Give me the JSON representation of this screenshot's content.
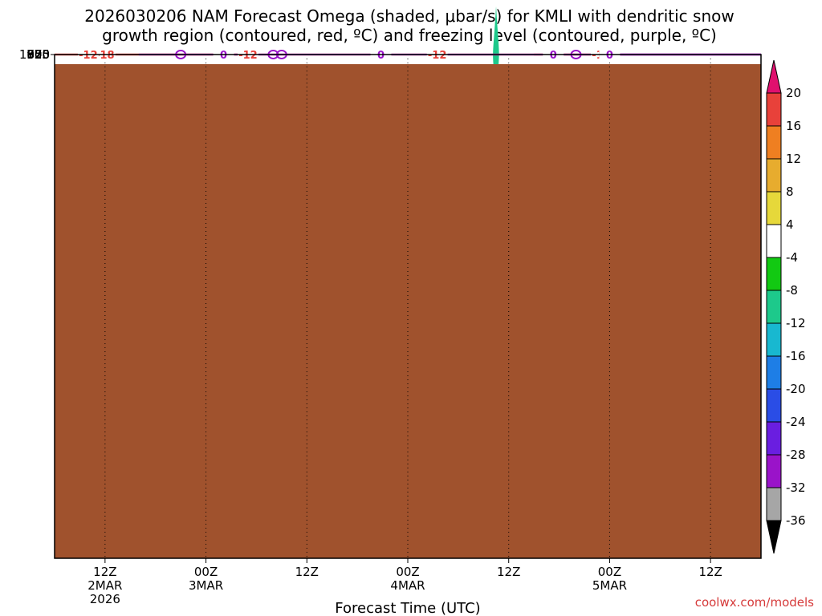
{
  "title": {
    "line1": "2026030206 NAM Forecast Omega (shaded, μbar/s) for KMLI with dendritic snow",
    "line2": "growth region (contoured, red, ºC) and freezing level (contoured, purple, ºC)"
  },
  "credit": "coolwx.com/models",
  "chart_data": {
    "type": "time-height contour",
    "title": "2026030206 NAM Forecast Omega (shaded, μbar/s) for KMLI with dendritic snow growth region (contoured, red, ºC) and freezing level (contoured, purple, ºC)",
    "xlabel": "Forecast Time (UTC)",
    "ylabel": "Pressure (hPa)",
    "x_range_hours_from_start": [
      0,
      84
    ],
    "x_ticks": [
      {
        "hour": 6,
        "label": "12Z",
        "date": "2MAR",
        "year": "2026"
      },
      {
        "hour": 18,
        "label": "00Z",
        "date": "3MAR",
        "year": ""
      },
      {
        "hour": 30,
        "label": "12Z",
        "date": "",
        "year": ""
      },
      {
        "hour": 42,
        "label": "00Z",
        "date": "4MAR",
        "year": ""
      },
      {
        "hour": 54,
        "label": "12Z",
        "date": "",
        "year": ""
      },
      {
        "hour": 66,
        "label": "00Z",
        "date": "5MAR",
        "year": ""
      },
      {
        "hour": 78,
        "label": "12Z",
        "date": "",
        "year": ""
      }
    ],
    "y_range_hpa": [
      1010,
      500
    ],
    "y_ticks": [
      525,
      550,
      575,
      600,
      625,
      650,
      675,
      700,
      725,
      750,
      775,
      800,
      825,
      850,
      875,
      900,
      925,
      950,
      975,
      1000
    ],
    "grid": "dotted",
    "colorbar": {
      "labels": [
        "20",
        "16",
        "12",
        "8",
        "4",
        "-4",
        "-8",
        "-12",
        "-16",
        "-20",
        "-24",
        "-28",
        "-32",
        "-36"
      ],
      "colors": [
        "#e0106e",
        "#e8413a",
        "#ef7f21",
        "#e7ac2e",
        "#e6d83a",
        "#ffffff",
        "#12c912",
        "#1dc98b",
        "#18b8d0",
        "#1e7ee6",
        "#2a4de6",
        "#6a1ee0",
        "#9a13c9",
        "#a6a6a6",
        "#000000"
      ]
    },
    "red_contours_label": "-12",
    "red_contours_label_b": "-18",
    "purple_contour_label": "0",
    "red_upper": [
      [
        0,
        533
      ],
      [
        2,
        535
      ],
      [
        5,
        535
      ],
      [
        8,
        532
      ],
      [
        10,
        527
      ],
      [
        12,
        520
      ],
      [
        14,
        515
      ],
      [
        16,
        507
      ],
      [
        18,
        503
      ],
      [
        20,
        500
      ],
      [
        22,
        497
      ]
    ],
    "red_upper_b": [
      [
        57,
        494
      ],
      [
        58,
        510
      ],
      [
        60,
        519
      ],
      [
        62,
        522
      ],
      [
        64,
        515
      ],
      [
        66,
        507
      ],
      [
        67,
        500
      ]
    ],
    "red_lower": [
      [
        0,
        593
      ],
      [
        2,
        588
      ],
      [
        4,
        589
      ],
      [
        7,
        588
      ],
      [
        10,
        584
      ],
      [
        13,
        579
      ],
      [
        16,
        576
      ],
      [
        18,
        575
      ],
      [
        20,
        570
      ],
      [
        22,
        565
      ],
      [
        24,
        564
      ],
      [
        26,
        563
      ],
      [
        28,
        558
      ],
      [
        30,
        555
      ],
      [
        33,
        553
      ],
      [
        35,
        551
      ],
      [
        37,
        552
      ],
      [
        39,
        555
      ],
      [
        41,
        559
      ],
      [
        42,
        566
      ],
      [
        43,
        563
      ],
      [
        45,
        552
      ],
      [
        46,
        558
      ],
      [
        47,
        550
      ],
      [
        49,
        561
      ],
      [
        50,
        552
      ],
      [
        51,
        560
      ],
      [
        52,
        554
      ],
      [
        53,
        557
      ],
      [
        55,
        570
      ],
      [
        58,
        577
      ],
      [
        61,
        580
      ],
      [
        63,
        582
      ],
      [
        65,
        575
      ],
      [
        67,
        565
      ],
      [
        69,
        555
      ],
      [
        70,
        546
      ],
      [
        72,
        537
      ],
      [
        74,
        538
      ],
      [
        76,
        535
      ],
      [
        79,
        534
      ],
      [
        82,
        534
      ],
      [
        84,
        531
      ]
    ],
    "purple_main": [
      [
        10,
        1010
      ],
      [
        12,
        990
      ],
      [
        11,
        975
      ],
      [
        11,
        955
      ],
      [
        12,
        935
      ],
      [
        13,
        918
      ],
      [
        15,
        905
      ],
      [
        16,
        885
      ],
      [
        17,
        860
      ],
      [
        14,
        853
      ],
      [
        16,
        849
      ],
      [
        18,
        863
      ],
      [
        20,
        860
      ],
      [
        22,
        858
      ],
      [
        24,
        848
      ],
      [
        26,
        830
      ],
      [
        24,
        815
      ],
      [
        20,
        812
      ],
      [
        18,
        800
      ],
      [
        18,
        770
      ],
      [
        18,
        755
      ],
      [
        20,
        745
      ],
      [
        21,
        735
      ],
      [
        22,
        720
      ],
      [
        24,
        705
      ],
      [
        25,
        700
      ],
      [
        27,
        715
      ],
      [
        29,
        705
      ],
      [
        31,
        700
      ],
      [
        33,
        703
      ],
      [
        35,
        695
      ],
      [
        36,
        700
      ],
      [
        37,
        690
      ],
      [
        38,
        675
      ],
      [
        39,
        666
      ],
      [
        41,
        670
      ],
      [
        43,
        673
      ],
      [
        45,
        670
      ],
      [
        46,
        680
      ],
      [
        47,
        700
      ],
      [
        49,
        704
      ],
      [
        51,
        698
      ],
      [
        53,
        694
      ],
      [
        54,
        703
      ],
      [
        55,
        697
      ],
      [
        56,
        714
      ],
      [
        57,
        722
      ],
      [
        58,
        700
      ],
      [
        59,
        689
      ],
      [
        61,
        688
      ],
      [
        63,
        694
      ],
      [
        65,
        705
      ],
      [
        67,
        720
      ],
      [
        68,
        710
      ],
      [
        70,
        700
      ],
      [
        72,
        685
      ],
      [
        74,
        675
      ],
      [
        76,
        665
      ],
      [
        78,
        668
      ],
      [
        80,
        675
      ],
      [
        82,
        670
      ],
      [
        84,
        655
      ]
    ],
    "purple_lower": [
      [
        65,
        925
      ],
      [
        67,
        935
      ],
      [
        69,
        945
      ],
      [
        70,
        957
      ],
      [
        72,
        970
      ],
      [
        75,
        975
      ],
      [
        79,
        978
      ],
      [
        84,
        970
      ]
    ],
    "purple_lower_top": [
      [
        65,
        925
      ],
      [
        70,
        938
      ],
      [
        74,
        940
      ],
      [
        78,
        935
      ],
      [
        84,
        930
      ]
    ],
    "omega_features": [
      {
        "hour": 23.5,
        "p_top": 750,
        "p_bottom": 850,
        "value": -6
      },
      {
        "hour": 28.5,
        "p_top": 780,
        "p_bottom": 880,
        "value": -6
      },
      {
        "hour": 44.5,
        "p_top": 653,
        "p_bottom": 772,
        "value": 6
      },
      {
        "hour": 50.0,
        "p_top": 590,
        "p_bottom": 795,
        "value": -6
      },
      {
        "hour": 52.5,
        "p_top": 575,
        "p_bottom": 850,
        "value": -8
      },
      {
        "hour": 60.0,
        "p_top": 630,
        "p_bottom": 755,
        "value": -6
      },
      {
        "hour": 59.5,
        "p_top": 835,
        "p_bottom": 950,
        "value": -6
      },
      {
        "hour": 63.5,
        "p_top": 500,
        "p_bottom": 567,
        "value": -6
      },
      {
        "hour": 46.0,
        "p_top": 500,
        "p_bottom": 585,
        "value": -6
      }
    ],
    "terrain": "surface shaded brown near 1000-1010 hPa"
  }
}
